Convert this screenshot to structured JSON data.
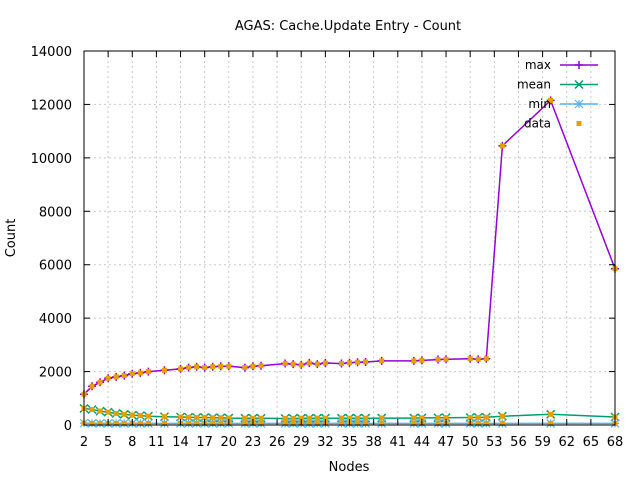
{
  "chart_data": {
    "type": "line",
    "title": "AGAS: Cache.Update Entry - Count",
    "xlabel": "Nodes",
    "ylabel": "Count",
    "ylim": [
      0,
      14000
    ],
    "yticks": [
      0,
      2000,
      4000,
      6000,
      8000,
      10000,
      12000,
      14000
    ],
    "xtick_labels": [
      "2",
      "5",
      "8",
      "11",
      "14",
      "17",
      "20",
      "23",
      "26",
      "29",
      "32",
      "35",
      "38",
      "41",
      "44",
      "47",
      "50",
      "53",
      "56",
      "59",
      "62",
      "65",
      "68"
    ],
    "grid": true,
    "legend_position": "top-right",
    "x": [
      2,
      3,
      4,
      5,
      6,
      7,
      8,
      9,
      10,
      12,
      14,
      15,
      16,
      17,
      18,
      19,
      20,
      22,
      23,
      24,
      27,
      28,
      29,
      30,
      31,
      32,
      34,
      35,
      36,
      37,
      39,
      43,
      44,
      46,
      47,
      50,
      51,
      52,
      54,
      60,
      68
    ],
    "series": [
      {
        "name": "max",
        "color": "#9400d3",
        "marker": "plus",
        "values": [
          1150,
          1450,
          1600,
          1750,
          1800,
          1850,
          1920,
          1950,
          2000,
          2050,
          2100,
          2150,
          2180,
          2150,
          2180,
          2200,
          2200,
          2150,
          2200,
          2220,
          2300,
          2280,
          2250,
          2320,
          2280,
          2320,
          2300,
          2330,
          2350,
          2360,
          2400,
          2400,
          2420,
          2450,
          2460,
          2480,
          2460,
          2480,
          10450,
          12150,
          5850
        ]
      },
      {
        "name": "mean",
        "color": "#009e73",
        "marker": "x",
        "values": [
          620,
          580,
          520,
          480,
          430,
          400,
          370,
          350,
          330,
          310,
          300,
          290,
          280,
          280,
          270,
          270,
          260,
          255,
          250,
          250,
          245,
          245,
          250,
          250,
          255,
          255,
          255,
          255,
          255,
          255,
          260,
          260,
          265,
          270,
          275,
          280,
          285,
          290,
          330,
          400,
          300
        ]
      },
      {
        "name": "min",
        "color": "#56b4e9",
        "marker": "star",
        "values": [
          70,
          60,
          60,
          60,
          60,
          60,
          60,
          60,
          60,
          60,
          60,
          60,
          60,
          60,
          60,
          60,
          60,
          60,
          60,
          60,
          60,
          60,
          60,
          60,
          60,
          60,
          60,
          60,
          60,
          60,
          60,
          60,
          60,
          60,
          60,
          60,
          60,
          60,
          60,
          60,
          60
        ]
      },
      {
        "name": "data",
        "color": "#e69f00",
        "marker": "square"
      }
    ]
  }
}
